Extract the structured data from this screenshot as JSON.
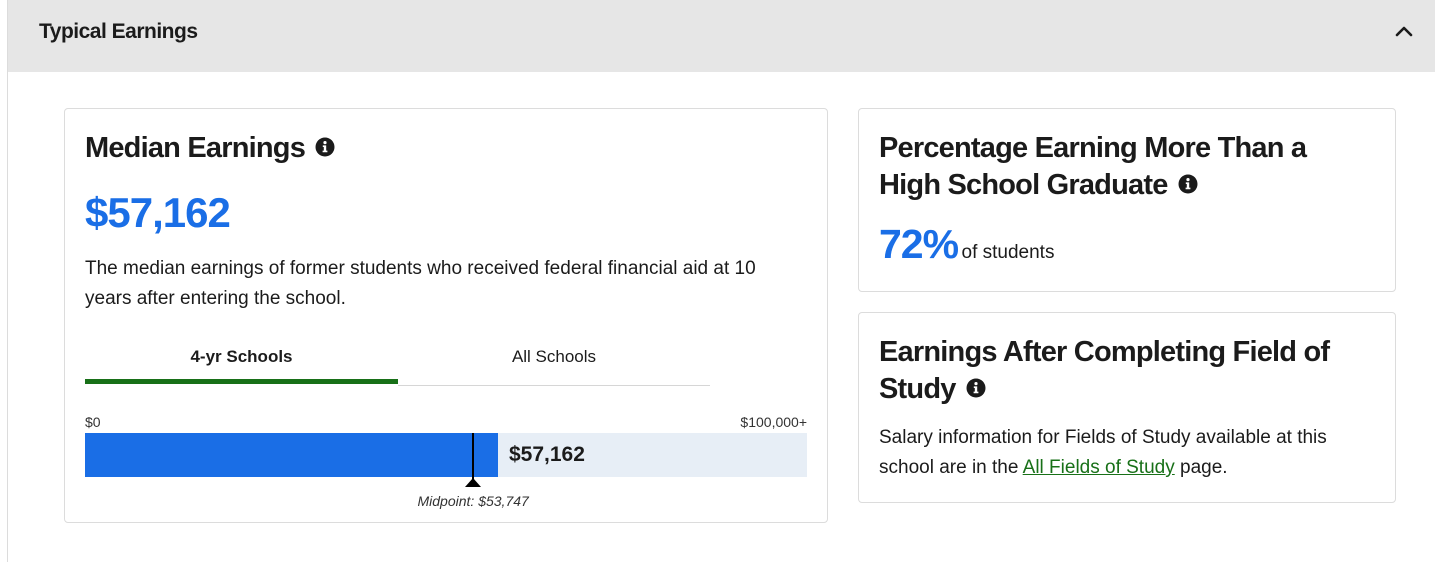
{
  "section": {
    "title": "Typical Earnings",
    "collapse_icon": "chevron-up-icon"
  },
  "median_earnings": {
    "title": "Median Earnings",
    "info_icon": "info-icon",
    "value": "$57,162",
    "description": "The median earnings of former students who received federal financial aid at 10 years after entering the school.",
    "tabs": [
      {
        "label": "4-yr Schools",
        "active": true
      },
      {
        "label": "All Schools",
        "active": false
      }
    ],
    "scale_min_label": "$0",
    "scale_max_label": "$100,000+",
    "bar_value_label": "$57,162",
    "bar_fraction": 0.57162,
    "midpoint_fraction": 0.53747,
    "midpoint_label": "Midpoint: $53,747"
  },
  "percentage_card": {
    "title_line1": "Percentage Earning More Than a",
    "title_line2": "High School Graduate",
    "value": "72%",
    "suffix": "of students"
  },
  "field_of_study_card": {
    "title_line1": "Earnings After Completing Field of",
    "title_line2": "Study",
    "text_before": "Salary information for Fields of Study available at this school are in the ",
    "link_text": "All Fields of Study",
    "text_after": " page."
  },
  "colors": {
    "accent_blue": "#1a6ee6",
    "tab_active_green": "#187018",
    "link_green": "#187018",
    "header_gray": "#e6e6e6"
  }
}
